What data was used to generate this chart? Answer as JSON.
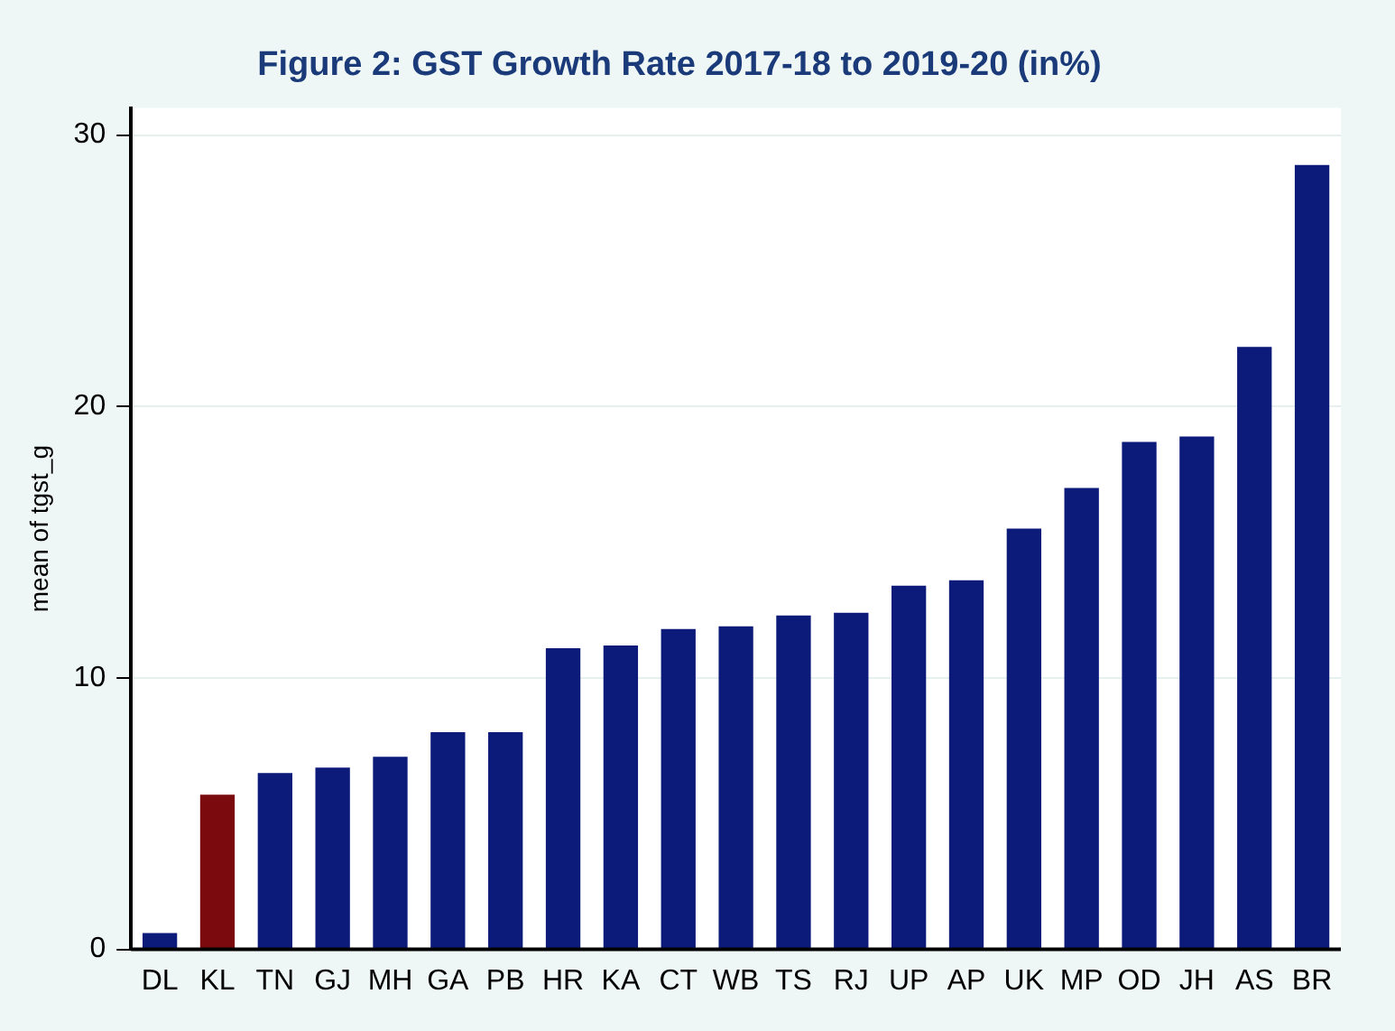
{
  "chart_data": {
    "type": "bar",
    "title": "Figure 2: GST Growth Rate 2017-18 to 2019-20 (in%)",
    "ylabel": "mean of tgst_g",
    "categories": [
      "DL",
      "KL",
      "TN",
      "GJ",
      "MH",
      "GA",
      "PB",
      "HR",
      "KA",
      "CT",
      "WB",
      "TS",
      "RJ",
      "UP",
      "AP",
      "UK",
      "MP",
      "OD",
      "JH",
      "AS",
      "BR"
    ],
    "values": [
      0.6,
      5.7,
      6.5,
      6.7,
      7.1,
      8.0,
      8.0,
      11.1,
      11.2,
      11.8,
      11.9,
      12.3,
      12.4,
      13.4,
      13.6,
      15.5,
      17.0,
      18.7,
      18.9,
      22.2,
      28.9
    ],
    "colors": [
      "#0c1a7a",
      "#7a0a0e",
      "#0c1a7a",
      "#0c1a7a",
      "#0c1a7a",
      "#0c1a7a",
      "#0c1a7a",
      "#0c1a7a",
      "#0c1a7a",
      "#0c1a7a",
      "#0c1a7a",
      "#0c1a7a",
      "#0c1a7a",
      "#0c1a7a",
      "#0c1a7a",
      "#0c1a7a",
      "#0c1a7a",
      "#0c1a7a",
      "#0c1a7a",
      "#0c1a7a",
      "#0c1a7a"
    ],
    "ylim": [
      0,
      31
    ],
    "yticks": [
      0,
      10,
      20,
      30
    ],
    "grid": "y",
    "legend": false
  }
}
